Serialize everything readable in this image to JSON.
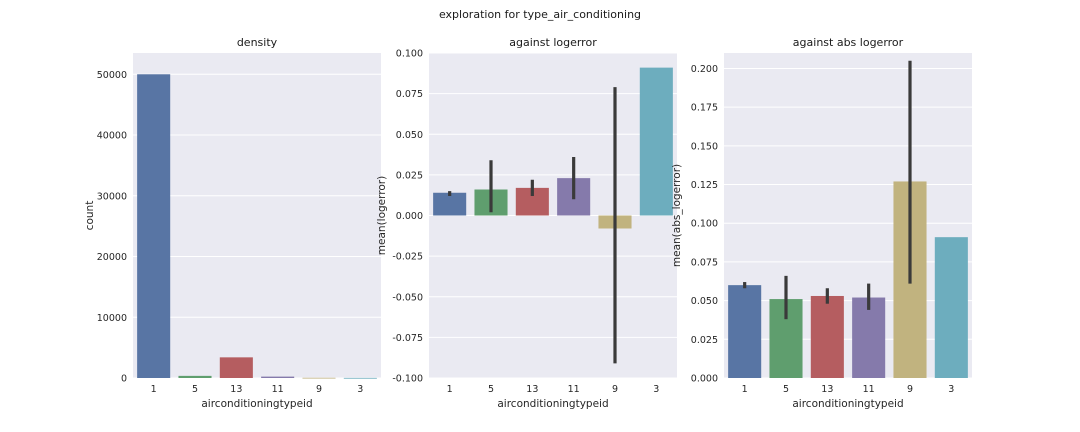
{
  "figure": {
    "suptitle": "exploration for type_air_conditioning"
  },
  "colors": {
    "panel_bg": "#eaeaf2",
    "grid": "#ffffff",
    "errbar": "#3a3a3a",
    "bars": [
      "#5875a4",
      "#5f9e6e",
      "#b55d60",
      "#857aab",
      "#c1b37f",
      "#6dadbe"
    ]
  },
  "chart_data": [
    {
      "type": "bar",
      "title": "density",
      "xlabel": "airconditioningtypeid",
      "ylabel": "count",
      "categories": [
        "1",
        "5",
        "13",
        "11",
        "9",
        "3"
      ],
      "values": [
        50000,
        350,
        3400,
        230,
        40,
        20
      ],
      "ylim": [
        0,
        53500
      ],
      "yticks": [
        0,
        10000,
        20000,
        30000,
        40000,
        50000
      ],
      "ytick_labels": [
        "0",
        "10000",
        "20000",
        "30000",
        "40000",
        "50000"
      ],
      "grid": true
    },
    {
      "type": "bar",
      "title": "against logerror",
      "xlabel": "airconditioningtypeid",
      "ylabel": "mean(logerror)",
      "categories": [
        "1",
        "5",
        "13",
        "11",
        "9",
        "3"
      ],
      "values": [
        0.014,
        0.016,
        0.017,
        0.023,
        -0.008,
        0.091
      ],
      "error_low": [
        0.012,
        0.002,
        0.012,
        0.01,
        -0.091,
        null
      ],
      "error_high": [
        0.015,
        0.034,
        0.022,
        0.036,
        0.079,
        null
      ],
      "ylim": [
        -0.1,
        0.1
      ],
      "yticks": [
        -0.1,
        -0.075,
        -0.05,
        -0.025,
        0.0,
        0.025,
        0.05,
        0.075,
        0.1
      ],
      "ytick_labels": [
        "-0.100",
        "-0.075",
        "-0.050",
        "-0.025",
        "0.000",
        "0.025",
        "0.050",
        "0.075",
        "0.100"
      ],
      "grid": true
    },
    {
      "type": "bar",
      "title": "against abs logerror",
      "xlabel": "airconditioningtypeid",
      "ylabel": "mean(abs_logerror)",
      "categories": [
        "1",
        "5",
        "13",
        "11",
        "9",
        "3"
      ],
      "values": [
        0.06,
        0.051,
        0.053,
        0.052,
        0.127,
        0.091
      ],
      "error_low": [
        0.058,
        0.038,
        0.048,
        0.044,
        0.061,
        null
      ],
      "error_high": [
        0.062,
        0.066,
        0.058,
        0.061,
        0.205,
        null
      ],
      "ylim": [
        0,
        0.21
      ],
      "yticks": [
        0.0,
        0.025,
        0.05,
        0.075,
        0.1,
        0.125,
        0.15,
        0.175,
        0.2
      ],
      "ytick_labels": [
        "0.000",
        "0.025",
        "0.050",
        "0.075",
        "0.100",
        "0.125",
        "0.150",
        "0.175",
        "0.200"
      ],
      "grid": true
    }
  ]
}
